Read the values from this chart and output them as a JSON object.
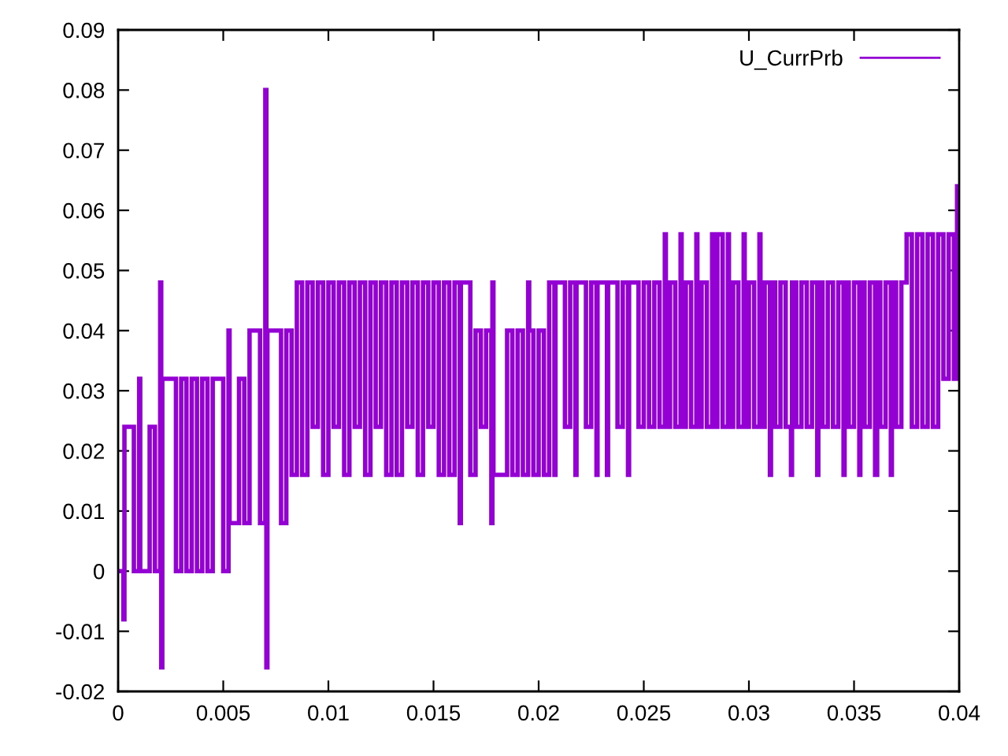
{
  "chart_data": {
    "type": "step",
    "series": [
      {
        "name": "U_CurrPrb",
        "color": "#9400d3",
        "x": [
          0,
          0.00025,
          0.0003,
          0.00075,
          0.001,
          0.00105,
          0.0015,
          0.00175,
          0.002,
          0.00205,
          0.0021,
          0.00275,
          0.003,
          0.00325,
          0.0035,
          0.00375,
          0.004,
          0.00425,
          0.0045,
          0.005,
          0.00525,
          0.0053,
          0.00575,
          0.006,
          0.00625,
          0.00675,
          0.007,
          0.00705,
          0.0071,
          0.00775,
          0.008,
          0.00825,
          0.0085,
          0.00875,
          0.009,
          0.00925,
          0.0095,
          0.00975,
          0.01,
          0.01025,
          0.0105,
          0.01075,
          0.011,
          0.01125,
          0.0115,
          0.01175,
          0.012,
          0.01225,
          0.0125,
          0.01275,
          0.013,
          0.01325,
          0.0135,
          0.01375,
          0.014,
          0.01425,
          0.0145,
          0.01475,
          0.015,
          0.01525,
          0.0155,
          0.01575,
          0.016,
          0.01625,
          0.0163,
          0.01675,
          0.017,
          0.01725,
          0.0175,
          0.01775,
          0.0178,
          0.01785,
          0.0185,
          0.01875,
          0.019,
          0.01925,
          0.0195,
          0.01955,
          0.01975,
          0.02,
          0.02025,
          0.0205,
          0.02075,
          0.0208,
          0.02125,
          0.0215,
          0.02175,
          0.0218,
          0.02225,
          0.0225,
          0.02275,
          0.0228,
          0.02325,
          0.0233,
          0.02375,
          0.024,
          0.02425,
          0.0243,
          0.02475,
          0.025,
          0.02525,
          0.0255,
          0.02575,
          0.026,
          0.02605,
          0.02625,
          0.0265,
          0.02675,
          0.0268,
          0.027,
          0.02725,
          0.0275,
          0.02755,
          0.02775,
          0.028,
          0.02825,
          0.0283,
          0.0285,
          0.02875,
          0.029,
          0.02905,
          0.02925,
          0.0295,
          0.02975,
          0.0298,
          0.03,
          0.03025,
          0.0305,
          0.03055,
          0.03075,
          0.031,
          0.03105,
          0.03125,
          0.0315,
          0.03175,
          0.032,
          0.03205,
          0.03225,
          0.0325,
          0.03275,
          0.033,
          0.03325,
          0.0333,
          0.0335,
          0.03375,
          0.034,
          0.03425,
          0.0345,
          0.03455,
          0.03475,
          0.035,
          0.03525,
          0.0353,
          0.0355,
          0.03575,
          0.036,
          0.0361,
          0.03625,
          0.0365,
          0.03675,
          0.0368,
          0.037,
          0.03725,
          0.0375,
          0.03775,
          0.038,
          0.03825,
          0.0385,
          0.03875,
          0.039,
          0.03925,
          0.0395,
          0.03975,
          0.0399,
          0.04
        ],
        "values": [
          0,
          -0.008,
          0.024,
          0,
          0.032,
          0,
          0.024,
          0,
          0.048,
          -0.016,
          0.032,
          0,
          0.032,
          0,
          0.032,
          0,
          0.032,
          0,
          0.032,
          0,
          0.04,
          0.008,
          0.032,
          0.008,
          0.04,
          0.008,
          0.08,
          -0.016,
          0.04,
          0.008,
          0.04,
          0.016,
          0.048,
          0.016,
          0.048,
          0.024,
          0.048,
          0.016,
          0.048,
          0.024,
          0.048,
          0.016,
          0.048,
          0.024,
          0.048,
          0.016,
          0.048,
          0.024,
          0.048,
          0.016,
          0.048,
          0.016,
          0.048,
          0.024,
          0.048,
          0.016,
          0.048,
          0.024,
          0.048,
          0.016,
          0.048,
          0.016,
          0.048,
          0.008,
          0.048,
          0.016,
          0.04,
          0.024,
          0.04,
          0.008,
          0.048,
          0.016,
          0.04,
          0.016,
          0.04,
          0.016,
          0.048,
          0.04,
          0.016,
          0.04,
          0.016,
          0.048,
          0.016,
          0.048,
          0.024,
          0.048,
          0.016,
          0.048,
          0.024,
          0.048,
          0.016,
          0.048,
          0.016,
          0.048,
          0.024,
          0.048,
          0.016,
          0.048,
          0.024,
          0.048,
          0.024,
          0.048,
          0.024,
          0.056,
          0.024,
          0.048,
          0.024,
          0.056,
          0.024,
          0.048,
          0.024,
          0.056,
          0.024,
          0.048,
          0.024,
          0.056,
          0.024,
          0.056,
          0.024,
          0.056,
          0.024,
          0.048,
          0.024,
          0.056,
          0.024,
          0.048,
          0.024,
          0.056,
          0.024,
          0.048,
          0.016,
          0.048,
          0.024,
          0.048,
          0.024,
          0.016,
          0.048,
          0.024,
          0.048,
          0.024,
          0.048,
          0.016,
          0.048,
          0.024,
          0.048,
          0.024,
          0.048,
          0.016,
          0.048,
          0.024,
          0.048,
          0.016,
          0.048,
          0.024,
          0.048,
          0.016,
          0.048,
          0.024,
          0.048,
          0.016,
          0.048,
          0.024,
          0.048,
          0.056,
          0.024,
          0.056,
          0.024,
          0.056,
          0.024,
          0.056,
          0.032,
          0.056,
          0.032,
          0.064,
          0.04
        ]
      }
    ],
    "xlim": [
      0,
      0.04
    ],
    "xticks": [
      0,
      0.005,
      0.01,
      0.015,
      0.02,
      0.025,
      0.03,
      0.035,
      0.04
    ],
    "ylim": [
      -0.02,
      0.09
    ],
    "yticks": [
      -0.02,
      -0.01,
      0,
      0.01,
      0.02,
      0.03,
      0.04,
      0.05,
      0.06,
      0.07,
      0.08,
      0.09
    ],
    "legend": "top right",
    "line_style": "solid"
  }
}
